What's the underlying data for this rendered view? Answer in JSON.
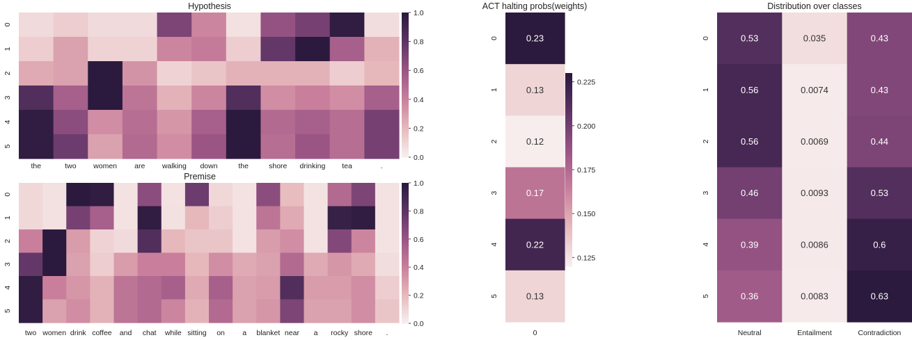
{
  "chart_data": [
    {
      "type": "heatmap",
      "title": "Hypothesis",
      "x_labels": [
        "the",
        "two",
        "women",
        "are",
        "walking",
        "down",
        "the",
        "shore",
        "drinking",
        "tea",
        "."
      ],
      "y_labels": [
        "0",
        "1",
        "2",
        "3",
        "4",
        "5"
      ],
      "values": [
        [
          0.07,
          0.12,
          0.07,
          0.07,
          0.7,
          0.38,
          0.05,
          0.62,
          0.72,
          0.98,
          0.06
        ],
        [
          0.12,
          0.28,
          0.1,
          0.1,
          0.38,
          0.42,
          0.12,
          0.78,
          1.0,
          0.55,
          0.22
        ],
        [
          0.25,
          0.28,
          1.0,
          0.33,
          0.1,
          0.15,
          0.22,
          0.22,
          0.22,
          0.12,
          0.2
        ],
        [
          0.85,
          0.55,
          1.0,
          0.45,
          0.22,
          0.38,
          0.85,
          0.35,
          0.4,
          0.35,
          0.55
        ],
        [
          0.98,
          0.65,
          0.35,
          0.48,
          0.32,
          0.55,
          1.0,
          0.5,
          0.55,
          0.48,
          0.72
        ],
        [
          0.98,
          0.75,
          0.28,
          0.5,
          0.35,
          0.6,
          1.0,
          0.48,
          0.6,
          0.48,
          0.72
        ]
      ],
      "colorbar": {
        "range": [
          0.0,
          1.0
        ],
        "ticks": [
          "0.0",
          "0.2",
          "0.4",
          "0.6",
          "0.8",
          "1.0"
        ]
      }
    },
    {
      "type": "heatmap",
      "title": "Premise",
      "x_labels": [
        "two",
        "women",
        "drink",
        "coffee",
        "and",
        "chat",
        "while",
        "sitting",
        "on",
        "a",
        "blanket",
        "near",
        "a",
        "rocky",
        "shore",
        "."
      ],
      "y_labels": [
        "0",
        "1",
        "2",
        "3",
        "4",
        "5"
      ],
      "values": [
        [
          0.08,
          0.05,
          1.0,
          0.98,
          0.04,
          0.65,
          0.04,
          0.75,
          0.08,
          0.04,
          0.65,
          0.18,
          0.04,
          0.5,
          0.7,
          0.04
        ],
        [
          0.08,
          0.05,
          0.72,
          0.55,
          0.04,
          0.98,
          0.05,
          0.2,
          0.12,
          0.04,
          0.45,
          0.25,
          0.04,
          0.95,
          0.98,
          0.04
        ],
        [
          0.4,
          1.0,
          0.3,
          0.1,
          0.07,
          0.85,
          0.2,
          0.15,
          0.15,
          0.04,
          0.3,
          0.35,
          0.04,
          0.68,
          0.38,
          0.04
        ],
        [
          0.78,
          1.0,
          0.28,
          0.12,
          0.3,
          0.4,
          0.4,
          0.2,
          0.35,
          0.25,
          0.28,
          0.5,
          0.25,
          0.32,
          0.25,
          0.06
        ],
        [
          0.98,
          0.4,
          0.32,
          0.22,
          0.45,
          0.5,
          0.55,
          0.25,
          0.55,
          0.28,
          0.3,
          0.85,
          0.3,
          0.3,
          0.35,
          0.12
        ],
        [
          0.98,
          0.28,
          0.35,
          0.22,
          0.45,
          0.5,
          0.38,
          0.22,
          0.5,
          0.28,
          0.32,
          0.7,
          0.28,
          0.28,
          0.35,
          0.15
        ]
      ],
      "colorbar": {
        "range": [
          0.0,
          1.0
        ],
        "ticks": [
          "0.0",
          "0.2",
          "0.4",
          "0.6",
          "0.8",
          "1.0"
        ]
      }
    },
    {
      "type": "heatmap",
      "title": "ACT halting probs(weights)",
      "x_labels": [
        "0"
      ],
      "y_labels": [
        "0",
        "1",
        "2",
        "3",
        "4",
        "5"
      ],
      "values": [
        [
          0.23
        ],
        [
          0.13
        ],
        [
          0.12
        ],
        [
          0.17
        ],
        [
          0.22
        ],
        [
          0.13
        ]
      ],
      "annotations": [
        [
          "0.23"
        ],
        [
          "0.13"
        ],
        [
          "0.12"
        ],
        [
          "0.17"
        ],
        [
          "0.22"
        ],
        [
          "0.13"
        ]
      ],
      "colorbar": {
        "range": [
          0.12,
          0.23
        ],
        "ticks": [
          "0.125",
          "0.150",
          "0.175",
          "0.200",
          "0.225"
        ]
      }
    },
    {
      "type": "heatmap",
      "title": "Distribution over classes",
      "x_labels": [
        "Neutral",
        "Entailment",
        "Contradiction"
      ],
      "y_labels": [
        "0",
        "1",
        "2",
        "3",
        "4",
        "5"
      ],
      "values": [
        [
          0.53,
          0.035,
          0.43
        ],
        [
          0.56,
          0.0074,
          0.43
        ],
        [
          0.56,
          0.0069,
          0.44
        ],
        [
          0.46,
          0.0093,
          0.53
        ],
        [
          0.39,
          0.0086,
          0.6
        ],
        [
          0.36,
          0.0083,
          0.63
        ]
      ],
      "annotations": [
        [
          "0.53",
          "0.035",
          "0.43"
        ],
        [
          "0.56",
          "0.0074",
          "0.43"
        ],
        [
          "0.56",
          "0.0069",
          "0.44"
        ],
        [
          "0.46",
          "0.0093",
          "0.53"
        ],
        [
          "0.39",
          "0.0086",
          "0.6"
        ],
        [
          "0.36",
          "0.0083",
          "0.63"
        ]
      ],
      "color_range": [
        0.0,
        0.63
      ]
    }
  ],
  "palette": [
    "#f7eded",
    "#e6b8bb",
    "#c97f9b",
    "#9a5585",
    "#5e3466",
    "#2b1a3d"
  ]
}
